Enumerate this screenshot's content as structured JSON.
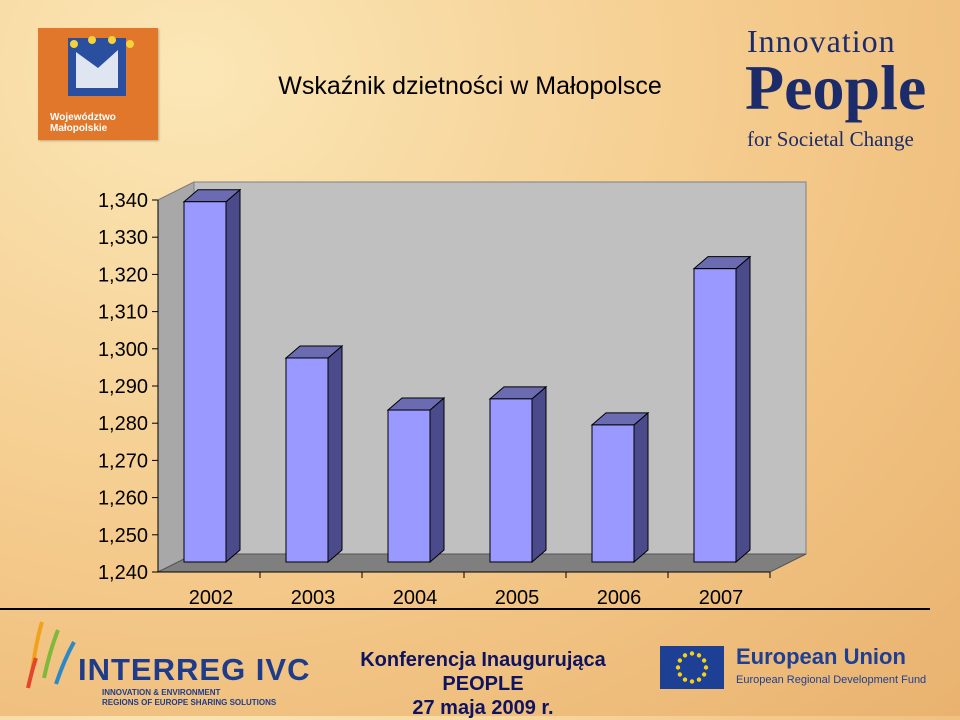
{
  "title": "Wskaźnik dzietności w Małopolsce",
  "logos": {
    "malopolska": {
      "line1": "Województwo",
      "line2": "Małopolskie"
    },
    "innovation_people": {
      "line1": "Innovation",
      "line2": "People",
      "line3": "for Societal Change"
    },
    "interreg": {
      "main": "INTERREG IVC",
      "sub1": "INNOVATION & ENVIRONMENT",
      "sub2": "REGIONS OF EUROPE SHARING SOLUTIONS"
    },
    "eu": {
      "main": "European Union",
      "sub": "European Regional Development Fund"
    }
  },
  "footer": {
    "line1": "Konferencja Inaugurująca PEOPLE",
    "line2": "27 maja 2009 r."
  },
  "colors": {
    "bar_front": "#9999ff",
    "bar_side": "#4b4b8c",
    "bar_top": "#6b6bb2",
    "plot_back": "#c0c0c0",
    "floor": "#7f7f7f"
  },
  "chart_data": {
    "type": "bar",
    "style": "3d",
    "categories": [
      "2002",
      "2003",
      "2004",
      "2005",
      "2006",
      "2007"
    ],
    "values": [
      1.339,
      1.297,
      1.283,
      1.286,
      1.279,
      1.321
    ],
    "ylim": [
      1.24,
      1.34
    ],
    "yticks": [
      "1,240",
      "1,250",
      "1,260",
      "1,270",
      "1,280",
      "1,290",
      "1,300",
      "1,310",
      "1,320",
      "1,330",
      "1,340"
    ],
    "title": "",
    "xlabel": "",
    "ylabel": "",
    "grid": false,
    "legend": "none"
  }
}
